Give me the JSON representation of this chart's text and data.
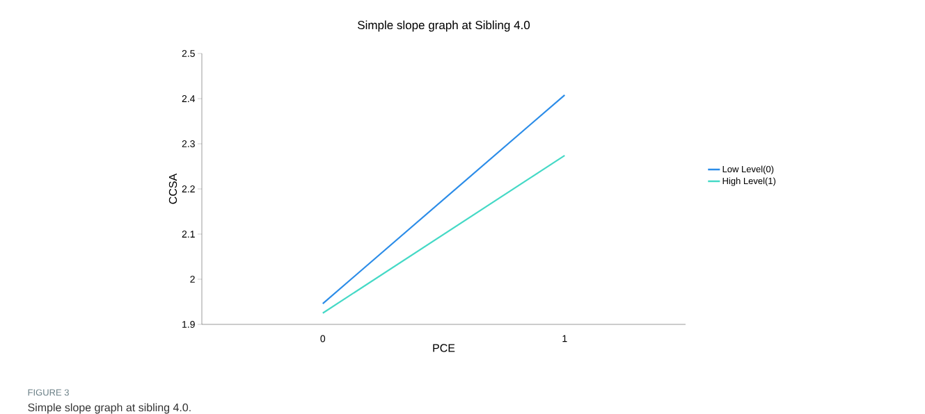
{
  "chart_data": {
    "type": "line",
    "title": "Simple slope graph at Sibling 4.0",
    "xlabel": "PCE",
    "ylabel": "CCSA",
    "categories": [
      "0",
      "1"
    ],
    "series": [
      {
        "name": "Low Level(0)",
        "color": "#2b8ce8",
        "values": [
          1.946,
          2.408
        ]
      },
      {
        "name": "High Level(1)",
        "color": "#45d9c6",
        "values": [
          1.925,
          2.274
        ]
      }
    ],
    "ylim": [
      1.9,
      2.5
    ],
    "yticks": [
      1.9,
      2,
      2.1,
      2.2,
      2.3,
      2.4,
      2.5
    ],
    "legend": "right",
    "marker": "none",
    "annotations": [
      "FIGURE 3",
      "Simple slope graph at sibling 4.0."
    ]
  }
}
